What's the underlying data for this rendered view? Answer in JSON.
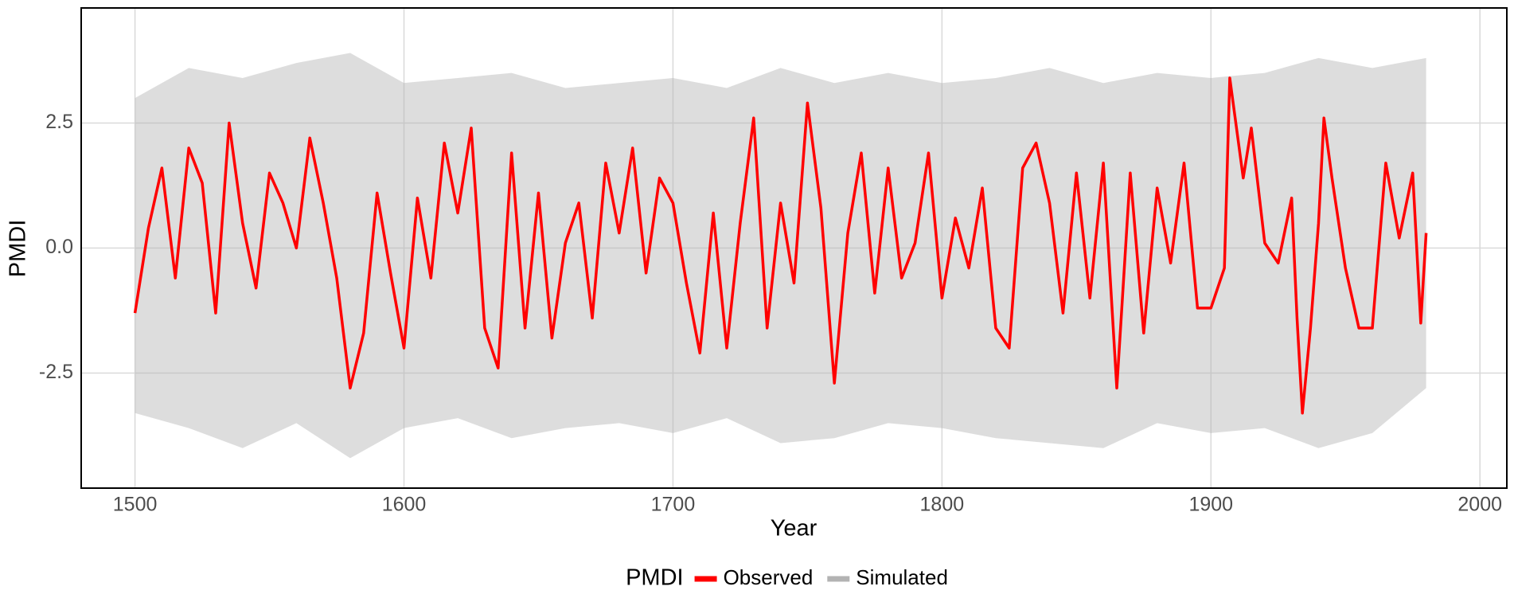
{
  "chart_data": {
    "type": "line",
    "x_label": "Year",
    "y_label": "PMDI",
    "legend_title": "PMDI",
    "legend_position": "bottom",
    "grid": true,
    "xlim": [
      1480,
      2010
    ],
    "xticks": [
      1500,
      1600,
      1700,
      1800,
      1900,
      2000
    ],
    "ylim": [
      -4.8,
      4.8
    ],
    "yticks": [
      -2.5,
      {
        "value": 0,
        "label": "0.0"
      },
      2.5
    ],
    "series": [
      {
        "name": "Observed",
        "color": "#ff0000",
        "x": [
          1500,
          1505,
          1510,
          1515,
          1520,
          1525,
          1530,
          1535,
          1540,
          1545,
          1550,
          1555,
          1560,
          1565,
          1570,
          1575,
          1580,
          1585,
          1590,
          1595,
          1600,
          1605,
          1610,
          1615,
          1620,
          1625,
          1630,
          1635,
          1640,
          1645,
          1650,
          1655,
          1660,
          1665,
          1670,
          1675,
          1680,
          1685,
          1690,
          1695,
          1700,
          1705,
          1710,
          1715,
          1720,
          1725,
          1730,
          1735,
          1740,
          1745,
          1750,
          1755,
          1760,
          1765,
          1770,
          1775,
          1780,
          1785,
          1790,
          1795,
          1800,
          1805,
          1810,
          1815,
          1820,
          1825,
          1830,
          1835,
          1840,
          1845,
          1850,
          1855,
          1860,
          1865,
          1870,
          1875,
          1880,
          1885,
          1890,
          1895,
          1900,
          1905,
          1907,
          1912,
          1915,
          1920,
          1925,
          1930,
          1932,
          1934,
          1937,
          1940,
          1942,
          1945,
          1950,
          1955,
          1960,
          1965,
          1970,
          1975,
          1978,
          1980
        ],
        "values": [
          -1.3,
          0.4,
          1.6,
          -0.6,
          2.0,
          1.3,
          -1.3,
          2.5,
          0.5,
          -0.8,
          1.5,
          0.9,
          0.0,
          2.2,
          0.9,
          -0.6,
          -2.8,
          -1.7,
          1.1,
          -0.5,
          -2.0,
          1.0,
          -0.6,
          2.1,
          0.7,
          2.4,
          -1.6,
          -2.4,
          1.9,
          -1.6,
          1.1,
          -1.8,
          0.1,
          0.9,
          -1.4,
          1.7,
          0.3,
          2.0,
          -0.5,
          1.4,
          0.9,
          -0.7,
          -2.1,
          0.7,
          -2.0,
          0.5,
          2.6,
          -1.6,
          0.9,
          -0.7,
          2.9,
          0.8,
          -2.7,
          0.3,
          1.9,
          -0.9,
          1.6,
          -0.6,
          0.1,
          1.9,
          -1.0,
          0.6,
          -0.4,
          1.2,
          -1.6,
          -2.0,
          1.6,
          2.1,
          0.9,
          -1.3,
          1.5,
          -1.0,
          1.7,
          -2.8,
          1.5,
          -1.7,
          1.2,
          -0.3,
          1.7,
          -1.2,
          -1.2,
          -0.4,
          3.4,
          1.4,
          2.4,
          0.1,
          -0.3,
          1.0,
          -1.4,
          -3.3,
          -1.6,
          0.5,
          2.6,
          1.4,
          -0.4,
          -1.6,
          -1.6,
          1.7,
          0.2,
          1.5,
          -1.5,
          0.3
        ]
      },
      {
        "name": "Simulated",
        "color": "#b3b3b3",
        "x": [
          1500,
          1520,
          1540,
          1560,
          1580,
          1600,
          1620,
          1640,
          1660,
          1680,
          1700,
          1720,
          1740,
          1760,
          1780,
          1800,
          1820,
          1840,
          1860,
          1880,
          1900,
          1920,
          1940,
          1960,
          1980
        ],
        "lower": [
          -3.3,
          -3.6,
          -4.0,
          -3.5,
          -4.2,
          -3.6,
          -3.4,
          -3.8,
          -3.6,
          -3.5,
          -3.7,
          -3.4,
          -3.9,
          -3.8,
          -3.5,
          -3.6,
          -3.8,
          -3.9,
          -4.0,
          -3.5,
          -3.7,
          -3.6,
          -4.0,
          -3.7,
          -2.8
        ],
        "upper": [
          3.0,
          3.6,
          3.4,
          3.7,
          3.9,
          3.3,
          3.4,
          3.5,
          3.2,
          3.3,
          3.4,
          3.2,
          3.6,
          3.3,
          3.5,
          3.3,
          3.4,
          3.6,
          3.3,
          3.5,
          3.4,
          3.5,
          3.8,
          3.6,
          3.8
        ]
      }
    ]
  }
}
